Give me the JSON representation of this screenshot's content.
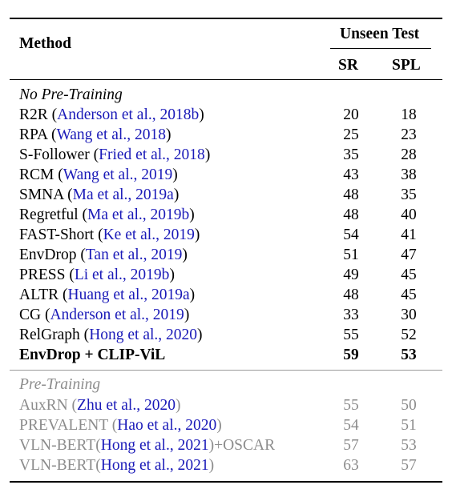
{
  "table": {
    "header": {
      "method": "Method",
      "group": "Unseen Test",
      "sr": "SR",
      "spl": "SPL"
    },
    "sections": [
      {
        "label": "No Pre-Training",
        "rows": [
          {
            "name": "R2R (",
            "cite": "Anderson et al., 2018b",
            "tail": ")",
            "sr": "20",
            "spl": "18"
          },
          {
            "name": "RPA (",
            "cite": "Wang et al., 2018",
            "tail": ")",
            "sr": "25",
            "spl": "23"
          },
          {
            "name": "S-Follower (",
            "cite": "Fried et al., 2018",
            "tail": ")",
            "sr": "35",
            "spl": "28"
          },
          {
            "name": "RCM (",
            "cite": "Wang et al., 2019",
            "tail": ")",
            "sr": "43",
            "spl": "38"
          },
          {
            "name": "SMNA (",
            "cite": "Ma et al., 2019a",
            "tail": ")",
            "sr": "48",
            "spl": "35"
          },
          {
            "name": "Regretful (",
            "cite": "Ma et al., 2019b",
            "tail": ")",
            "sr": "48",
            "spl": "40"
          },
          {
            "name": "FAST-Short (",
            "cite": "Ke et al., 2019",
            "tail": ")",
            "sr": "54",
            "spl": "41"
          },
          {
            "name": "EnvDrop (",
            "cite": "Tan et al., 2019",
            "tail": ")",
            "sr": "51",
            "spl": "47"
          },
          {
            "name": "PRESS (",
            "cite": "Li et al., 2019b",
            "tail": ")",
            "sr": "49",
            "spl": "45"
          },
          {
            "name": "ALTR (",
            "cite": "Huang et al., 2019a",
            "tail": ")",
            "sr": "48",
            "spl": "45"
          },
          {
            "name": "CG (",
            "cite": "Anderson et al., 2019",
            "tail": ")",
            "sr": "33",
            "spl": "30"
          },
          {
            "name": "RelGraph (",
            "cite": "Hong et al., 2020",
            "tail": ")",
            "sr": "55",
            "spl": "52"
          },
          {
            "name": "EnvDrop + CLIP-ViL",
            "cite": "",
            "tail": "",
            "sr": "59",
            "spl": "53"
          }
        ]
      },
      {
        "label": "Pre-Training",
        "rows": [
          {
            "name": "AuxRN (",
            "cite": "Zhu et al., 2020",
            "tail": ")",
            "sr": "55",
            "spl": "50"
          },
          {
            "name": "PREVALENT (",
            "cite": "Hao et al., 2020",
            "tail": ")",
            "sr": "54",
            "spl": "51"
          },
          {
            "name": "VLN-BERT(",
            "cite": "Hong et al., 2021",
            "tail": ")+OSCAR",
            "sr": "57",
            "spl": "53"
          },
          {
            "name": "VLN-BERT(",
            "cite": "Hong et al., 2021",
            "tail": ")",
            "sr": "63",
            "spl": "57"
          }
        ]
      }
    ]
  },
  "colors": {
    "citation": "#1a1ab8",
    "muted_text": "#8c8c8c",
    "text": "#000000"
  }
}
